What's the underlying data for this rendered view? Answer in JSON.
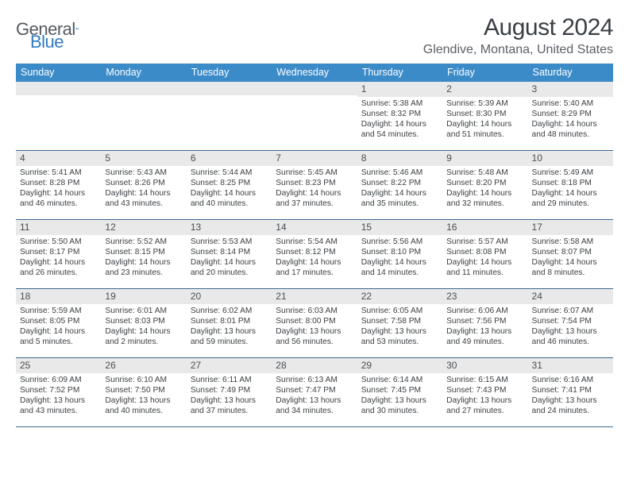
{
  "brand": {
    "part1": "General",
    "part2": "Blue"
  },
  "title": "August 2024",
  "location": "Glendive, Montana, United States",
  "colors": {
    "header_bg": "#3b8bc9",
    "header_text": "#ffffff",
    "daynum_bg": "#e9e9e9",
    "row_border": "#3b6a93",
    "body_text": "#3c4044",
    "title_text": "#3a3f44",
    "location_text": "#5b6066",
    "logo_gray": "#555a5f",
    "logo_blue": "#2f7bbf"
  },
  "weekdays": [
    "Sunday",
    "Monday",
    "Tuesday",
    "Wednesday",
    "Thursday",
    "Friday",
    "Saturday"
  ],
  "weeks": [
    [
      {
        "n": "",
        "sr": "",
        "ss": "",
        "dl": ""
      },
      {
        "n": "",
        "sr": "",
        "ss": "",
        "dl": ""
      },
      {
        "n": "",
        "sr": "",
        "ss": "",
        "dl": ""
      },
      {
        "n": "",
        "sr": "",
        "ss": "",
        "dl": ""
      },
      {
        "n": "1",
        "sr": "Sunrise: 5:38 AM",
        "ss": "Sunset: 8:32 PM",
        "dl": "Daylight: 14 hours and 54 minutes."
      },
      {
        "n": "2",
        "sr": "Sunrise: 5:39 AM",
        "ss": "Sunset: 8:30 PM",
        "dl": "Daylight: 14 hours and 51 minutes."
      },
      {
        "n": "3",
        "sr": "Sunrise: 5:40 AM",
        "ss": "Sunset: 8:29 PM",
        "dl": "Daylight: 14 hours and 48 minutes."
      }
    ],
    [
      {
        "n": "4",
        "sr": "Sunrise: 5:41 AM",
        "ss": "Sunset: 8:28 PM",
        "dl": "Daylight: 14 hours and 46 minutes."
      },
      {
        "n": "5",
        "sr": "Sunrise: 5:43 AM",
        "ss": "Sunset: 8:26 PM",
        "dl": "Daylight: 14 hours and 43 minutes."
      },
      {
        "n": "6",
        "sr": "Sunrise: 5:44 AM",
        "ss": "Sunset: 8:25 PM",
        "dl": "Daylight: 14 hours and 40 minutes."
      },
      {
        "n": "7",
        "sr": "Sunrise: 5:45 AM",
        "ss": "Sunset: 8:23 PM",
        "dl": "Daylight: 14 hours and 37 minutes."
      },
      {
        "n": "8",
        "sr": "Sunrise: 5:46 AM",
        "ss": "Sunset: 8:22 PM",
        "dl": "Daylight: 14 hours and 35 minutes."
      },
      {
        "n": "9",
        "sr": "Sunrise: 5:48 AM",
        "ss": "Sunset: 8:20 PM",
        "dl": "Daylight: 14 hours and 32 minutes."
      },
      {
        "n": "10",
        "sr": "Sunrise: 5:49 AM",
        "ss": "Sunset: 8:18 PM",
        "dl": "Daylight: 14 hours and 29 minutes."
      }
    ],
    [
      {
        "n": "11",
        "sr": "Sunrise: 5:50 AM",
        "ss": "Sunset: 8:17 PM",
        "dl": "Daylight: 14 hours and 26 minutes."
      },
      {
        "n": "12",
        "sr": "Sunrise: 5:52 AM",
        "ss": "Sunset: 8:15 PM",
        "dl": "Daylight: 14 hours and 23 minutes."
      },
      {
        "n": "13",
        "sr": "Sunrise: 5:53 AM",
        "ss": "Sunset: 8:14 PM",
        "dl": "Daylight: 14 hours and 20 minutes."
      },
      {
        "n": "14",
        "sr": "Sunrise: 5:54 AM",
        "ss": "Sunset: 8:12 PM",
        "dl": "Daylight: 14 hours and 17 minutes."
      },
      {
        "n": "15",
        "sr": "Sunrise: 5:56 AM",
        "ss": "Sunset: 8:10 PM",
        "dl": "Daylight: 14 hours and 14 minutes."
      },
      {
        "n": "16",
        "sr": "Sunrise: 5:57 AM",
        "ss": "Sunset: 8:08 PM",
        "dl": "Daylight: 14 hours and 11 minutes."
      },
      {
        "n": "17",
        "sr": "Sunrise: 5:58 AM",
        "ss": "Sunset: 8:07 PM",
        "dl": "Daylight: 14 hours and 8 minutes."
      }
    ],
    [
      {
        "n": "18",
        "sr": "Sunrise: 5:59 AM",
        "ss": "Sunset: 8:05 PM",
        "dl": "Daylight: 14 hours and 5 minutes."
      },
      {
        "n": "19",
        "sr": "Sunrise: 6:01 AM",
        "ss": "Sunset: 8:03 PM",
        "dl": "Daylight: 14 hours and 2 minutes."
      },
      {
        "n": "20",
        "sr": "Sunrise: 6:02 AM",
        "ss": "Sunset: 8:01 PM",
        "dl": "Daylight: 13 hours and 59 minutes."
      },
      {
        "n": "21",
        "sr": "Sunrise: 6:03 AM",
        "ss": "Sunset: 8:00 PM",
        "dl": "Daylight: 13 hours and 56 minutes."
      },
      {
        "n": "22",
        "sr": "Sunrise: 6:05 AM",
        "ss": "Sunset: 7:58 PM",
        "dl": "Daylight: 13 hours and 53 minutes."
      },
      {
        "n": "23",
        "sr": "Sunrise: 6:06 AM",
        "ss": "Sunset: 7:56 PM",
        "dl": "Daylight: 13 hours and 49 minutes."
      },
      {
        "n": "24",
        "sr": "Sunrise: 6:07 AM",
        "ss": "Sunset: 7:54 PM",
        "dl": "Daylight: 13 hours and 46 minutes."
      }
    ],
    [
      {
        "n": "25",
        "sr": "Sunrise: 6:09 AM",
        "ss": "Sunset: 7:52 PM",
        "dl": "Daylight: 13 hours and 43 minutes."
      },
      {
        "n": "26",
        "sr": "Sunrise: 6:10 AM",
        "ss": "Sunset: 7:50 PM",
        "dl": "Daylight: 13 hours and 40 minutes."
      },
      {
        "n": "27",
        "sr": "Sunrise: 6:11 AM",
        "ss": "Sunset: 7:49 PM",
        "dl": "Daylight: 13 hours and 37 minutes."
      },
      {
        "n": "28",
        "sr": "Sunrise: 6:13 AM",
        "ss": "Sunset: 7:47 PM",
        "dl": "Daylight: 13 hours and 34 minutes."
      },
      {
        "n": "29",
        "sr": "Sunrise: 6:14 AM",
        "ss": "Sunset: 7:45 PM",
        "dl": "Daylight: 13 hours and 30 minutes."
      },
      {
        "n": "30",
        "sr": "Sunrise: 6:15 AM",
        "ss": "Sunset: 7:43 PM",
        "dl": "Daylight: 13 hours and 27 minutes."
      },
      {
        "n": "31",
        "sr": "Sunrise: 6:16 AM",
        "ss": "Sunset: 7:41 PM",
        "dl": "Daylight: 13 hours and 24 minutes."
      }
    ]
  ]
}
